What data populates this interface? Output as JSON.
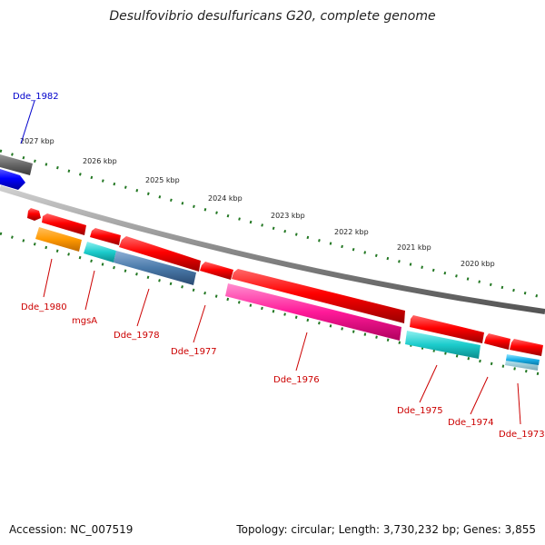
{
  "title": "Desulfovibrio desulfuricans G20, complete genome",
  "footer": {
    "accession": "Accession: NC_007519",
    "summary": "Topology: circular; Length: 3,730,232 bp; Genes: 3,855"
  },
  "ruler": [
    "2027 kbp",
    "2026 kbp",
    "2025 kbp",
    "2024 kbp",
    "2023 kbp",
    "2022 kbp",
    "2021 kbp",
    "2020 kbp"
  ],
  "genes": [
    {
      "name": "Dde_1982",
      "color": "#0000cc"
    },
    {
      "name": "Dde_1980",
      "color": "#cc0000"
    },
    {
      "name": "mgsA",
      "color": "#cc0000"
    },
    {
      "name": "Dde_1978",
      "color": "#cc0000"
    },
    {
      "name": "Dde_1977",
      "color": "#cc0000"
    },
    {
      "name": "Dde_1976",
      "color": "#cc0000"
    },
    {
      "name": "Dde_1975",
      "color": "#cc0000"
    },
    {
      "name": "Dde_1974",
      "color": "#cc0000"
    },
    {
      "name": "Dde_1973",
      "color": "#cc0000"
    }
  ]
}
